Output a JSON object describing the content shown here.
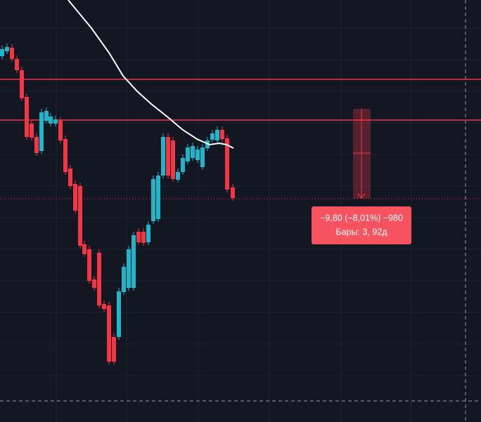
{
  "measure_tooltip": {
    "line1": "−9,80 (−8,01%) −980",
    "line2": "Бары: 3, 92д"
  }
}
